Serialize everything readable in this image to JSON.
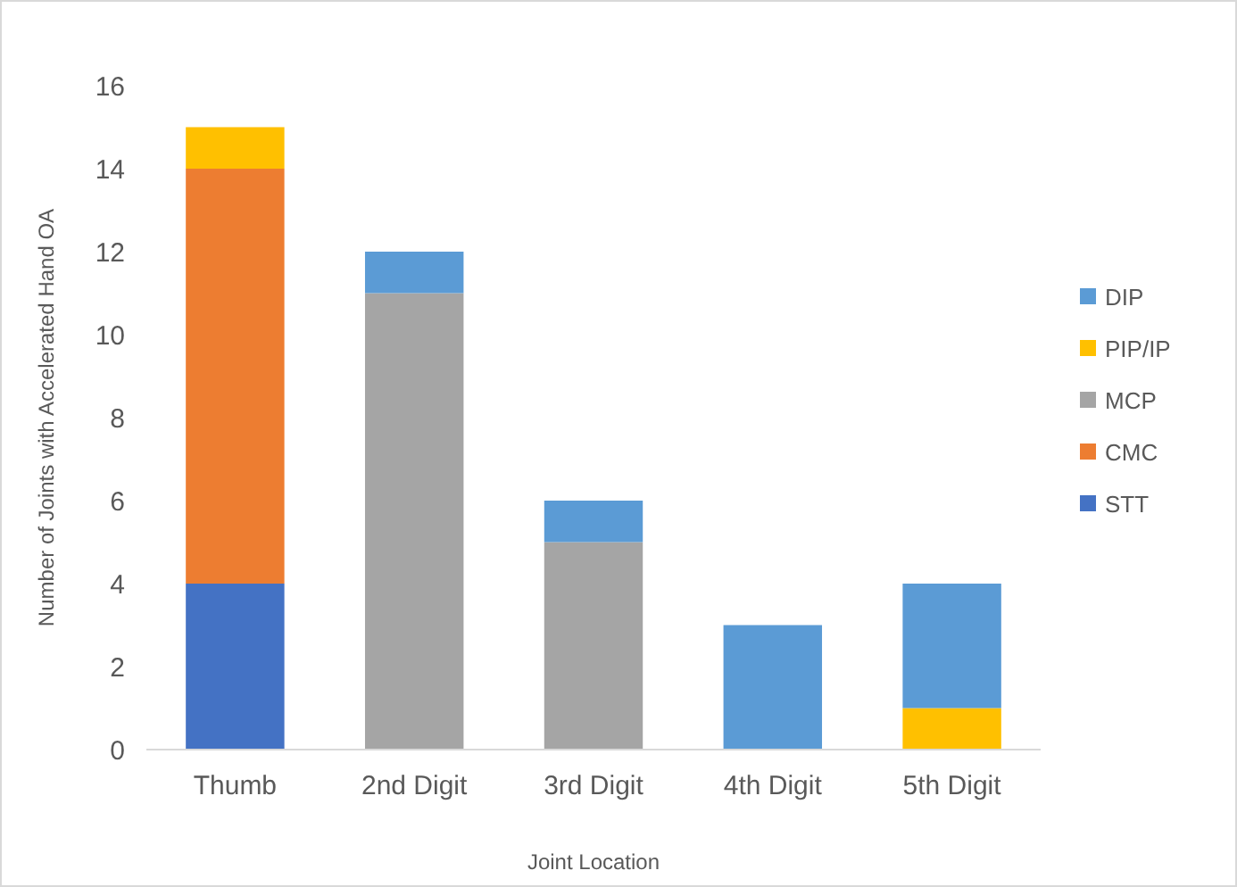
{
  "chart_data": {
    "type": "bar",
    "stacked": true,
    "xlabel": "Joint Location",
    "ylabel": "Number of Joints with Accelerated Hand OA",
    "categories": [
      "Thumb",
      "2nd Digit",
      "3rd Digit",
      "4th Digit",
      "5th Digit"
    ],
    "series": [
      {
        "name": "STT",
        "color": "#4472c4",
        "values": [
          4,
          0,
          0,
          0,
          0
        ]
      },
      {
        "name": "CMC",
        "color": "#ed7d31",
        "values": [
          10,
          0,
          0,
          0,
          0
        ]
      },
      {
        "name": "MCP",
        "color": "#a5a5a5",
        "values": [
          0,
          11,
          5,
          0,
          0
        ]
      },
      {
        "name": "PIP/IP",
        "color": "#ffc000",
        "values": [
          1,
          0,
          0,
          0,
          1
        ]
      },
      {
        "name": "DIP",
        "color": "#5b9bd5",
        "values": [
          0,
          1,
          1,
          3,
          3
        ]
      }
    ],
    "ylim": [
      0,
      16
    ],
    "yticks": [
      0,
      2,
      4,
      6,
      8,
      10,
      12,
      14,
      16
    ],
    "grid": false,
    "legend": "right"
  }
}
